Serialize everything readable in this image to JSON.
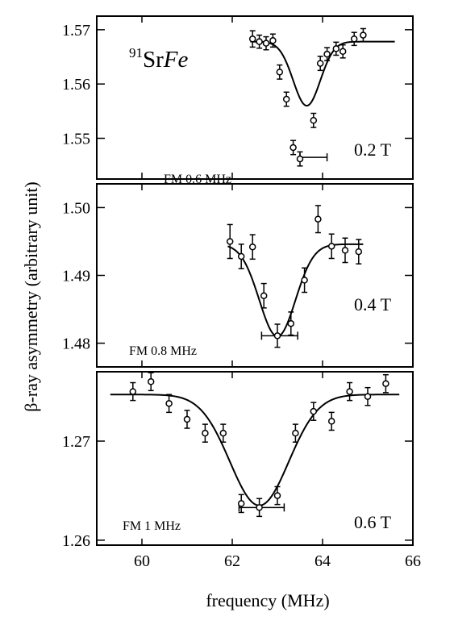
{
  "chart_data": {
    "type": "scatter",
    "sample_label": {
      "mass": "91",
      "element": "Sr",
      "host": "Fe"
    },
    "xlabel": "frequency (MHz)",
    "ylabel": "β-ray asymmetry (arbitrary unit)",
    "xlim": [
      59,
      66
    ],
    "xticks": [
      60,
      62,
      64,
      66
    ],
    "panels": [
      {
        "field_label": "0.2 T",
        "fm_label": "FM 0.6 MHz",
        "ylim": [
          1.5425,
          1.5725
        ],
        "yticks": [
          1.55,
          1.56,
          1.57
        ],
        "ytick_labels": [
          "1.55",
          "1.56",
          "1.57"
        ],
        "fit": {
          "baseline": 1.5678,
          "depth": 0.0118,
          "center": 63.65,
          "width": 0.3,
          "x_range": [
            62.4,
            65.6
          ]
        },
        "fm_bar": {
          "x": 63.8,
          "y": 1.5465,
          "half_width": 0.3
        },
        "points": [
          {
            "x": 62.45,
            "y": 1.5683,
            "err": 0.0015
          },
          {
            "x": 62.6,
            "y": 1.5678,
            "err": 0.0012
          },
          {
            "x": 62.75,
            "y": 1.5675,
            "err": 0.0012
          },
          {
            "x": 62.9,
            "y": 1.568,
            "err": 0.0012
          },
          {
            "x": 63.05,
            "y": 1.5622,
            "err": 0.0013
          },
          {
            "x": 63.2,
            "y": 1.5572,
            "err": 0.0013
          },
          {
            "x": 63.35,
            "y": 1.5483,
            "err": 0.0013
          },
          {
            "x": 63.5,
            "y": 1.5462,
            "err": 0.0013
          },
          {
            "x": 63.8,
            "y": 1.5533,
            "err": 0.0013
          },
          {
            "x": 63.95,
            "y": 1.5638,
            "err": 0.0013
          },
          {
            "x": 64.1,
            "y": 1.5655,
            "err": 0.0012
          },
          {
            "x": 64.3,
            "y": 1.5665,
            "err": 0.0012
          },
          {
            "x": 64.45,
            "y": 1.566,
            "err": 0.0012
          },
          {
            "x": 64.7,
            "y": 1.5683,
            "err": 0.0012
          },
          {
            "x": 64.9,
            "y": 1.569,
            "err": 0.0012
          }
        ]
      },
      {
        "field_label": "0.4 T",
        "fm_label": "FM 0.8 MHz",
        "ylim": [
          1.4765,
          1.5035
        ],
        "yticks": [
          1.48,
          1.49,
          1.5
        ],
        "ytick_labels": [
          "1.48",
          "1.49",
          "1.50"
        ],
        "fit": {
          "baseline": 1.4946,
          "depth": 0.0136,
          "center": 63.0,
          "width": 0.4,
          "x_range": [
            61.9,
            64.9
          ]
        },
        "fm_bar": {
          "x": 63.05,
          "y": 1.4811,
          "half_width": 0.4
        },
        "points": [
          {
            "x": 61.95,
            "y": 1.495,
            "err": 0.0025
          },
          {
            "x": 62.2,
            "y": 1.4928,
            "err": 0.0018
          },
          {
            "x": 62.45,
            "y": 1.4942,
            "err": 0.0018
          },
          {
            "x": 62.7,
            "y": 1.487,
            "err": 0.0018
          },
          {
            "x": 63.0,
            "y": 1.4811,
            "err": 0.0017
          },
          {
            "x": 63.3,
            "y": 1.4829,
            "err": 0.0017
          },
          {
            "x": 63.6,
            "y": 1.4893,
            "err": 0.0018
          },
          {
            "x": 63.9,
            "y": 1.4983,
            "err": 0.002
          },
          {
            "x": 64.2,
            "y": 1.4943,
            "err": 0.0018
          },
          {
            "x": 64.5,
            "y": 1.4937,
            "err": 0.0018
          },
          {
            "x": 64.8,
            "y": 1.4935,
            "err": 0.0018
          }
        ]
      },
      {
        "field_label": "0.6 T",
        "fm_label": "FM 1 MHz",
        "ylim": [
          1.2595,
          1.277
        ],
        "yticks": [
          1.26,
          1.27
        ],
        "ytick_labels": [
          "1.26",
          "1.27"
        ],
        "fit": {
          "baseline": 1.2747,
          "depth": 0.0112,
          "center": 62.6,
          "width": 0.65,
          "x_range": [
            59.3,
            65.7
          ]
        },
        "fm_bar": {
          "x": 62.65,
          "y": 1.2633,
          "half_width": 0.5
        },
        "points": [
          {
            "x": 59.8,
            "y": 1.275,
            "err": 0.0009
          },
          {
            "x": 60.2,
            "y": 1.276,
            "err": 0.0009
          },
          {
            "x": 60.6,
            "y": 1.2738,
            "err": 0.0009
          },
          {
            "x": 61.0,
            "y": 1.2722,
            "err": 0.0009
          },
          {
            "x": 61.4,
            "y": 1.2708,
            "err": 0.0009
          },
          {
            "x": 61.8,
            "y": 1.2708,
            "err": 0.0009
          },
          {
            "x": 62.2,
            "y": 1.2637,
            "err": 0.0009
          },
          {
            "x": 62.6,
            "y": 1.2633,
            "err": 0.0009
          },
          {
            "x": 63.0,
            "y": 1.2645,
            "err": 0.0009
          },
          {
            "x": 63.4,
            "y": 1.2708,
            "err": 0.0009
          },
          {
            "x": 63.8,
            "y": 1.273,
            "err": 0.0009
          },
          {
            "x": 64.2,
            "y": 1.272,
            "err": 0.0009
          },
          {
            "x": 64.6,
            "y": 1.275,
            "err": 0.0009
          },
          {
            "x": 65.0,
            "y": 1.2745,
            "err": 0.0009
          },
          {
            "x": 65.4,
            "y": 1.2758,
            "err": 0.0009
          }
        ]
      }
    ]
  }
}
